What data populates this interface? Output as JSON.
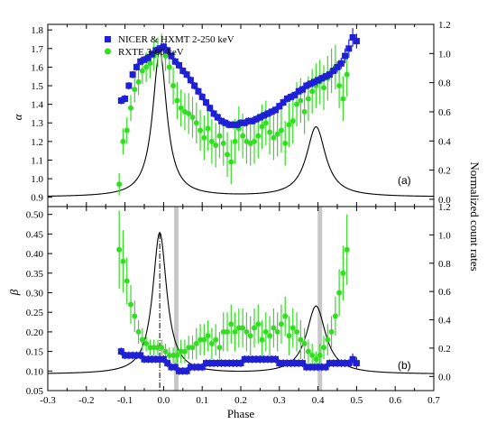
{
  "chart_data": [
    {
      "type": "scatter",
      "panel_label": "(a)",
      "xlabel": "",
      "ylabel": "α",
      "ylabel_right": "Normalized count rates",
      "xlim": [
        -0.3,
        0.7
      ],
      "ylim": [
        0.85,
        1.83
      ],
      "ylim_right": [
        -0.05,
        1.2
      ],
      "x_ticks": [
        "-0.3",
        "-0.2",
        "-0.1",
        "0.0",
        "0.1",
        "0.2",
        "0.3",
        "0.4",
        "0.5",
        "0.6",
        "0.7"
      ],
      "y_ticks": [
        "0.9",
        "1.0",
        "1.1",
        "1.2",
        "1.3",
        "1.4",
        "1.5",
        "1.6",
        "1.7",
        "1.8"
      ],
      "y_ticks_right": [
        "0.0",
        "0.2",
        "0.4",
        "0.6",
        "0.8",
        "1.0",
        "1.2"
      ],
      "legend": [
        {
          "label": "NICER & HXMT 2-250 keV",
          "color": "#1f1fd6",
          "marker": "square"
        },
        {
          "label": "RXTE 3-60 keV",
          "color": "#33dd22",
          "marker": "circle"
        }
      ],
      "series": [
        {
          "name": "NICER & HXMT 2-250 keV",
          "color": "#1f1fd6",
          "x": [
            -0.11,
            -0.1,
            -0.09,
            -0.08,
            -0.07,
            -0.06,
            -0.05,
            -0.04,
            -0.03,
            -0.02,
            -0.01,
            0.0,
            0.01,
            0.02,
            0.03,
            0.04,
            0.05,
            0.06,
            0.07,
            0.08,
            0.09,
            0.1,
            0.11,
            0.12,
            0.13,
            0.14,
            0.15,
            0.16,
            0.17,
            0.18,
            0.19,
            0.2,
            0.21,
            0.22,
            0.23,
            0.24,
            0.25,
            0.26,
            0.27,
            0.28,
            0.29,
            0.3,
            0.31,
            0.32,
            0.33,
            0.34,
            0.35,
            0.36,
            0.37,
            0.38,
            0.39,
            0.4,
            0.41,
            0.42,
            0.43,
            0.44,
            0.45,
            0.46,
            0.47,
            0.48,
            0.49,
            0.5
          ],
          "y": [
            1.42,
            1.43,
            1.5,
            1.56,
            1.6,
            1.63,
            1.64,
            1.65,
            1.67,
            1.69,
            1.7,
            1.71,
            1.69,
            1.66,
            1.63,
            1.61,
            1.58,
            1.56,
            1.53,
            1.5,
            1.47,
            1.44,
            1.41,
            1.38,
            1.35,
            1.33,
            1.31,
            1.3,
            1.29,
            1.29,
            1.29,
            1.3,
            1.3,
            1.31,
            1.31,
            1.32,
            1.33,
            1.34,
            1.35,
            1.36,
            1.37,
            1.39,
            1.41,
            1.43,
            1.44,
            1.45,
            1.47,
            1.48,
            1.5,
            1.51,
            1.52,
            1.53,
            1.54,
            1.55,
            1.56,
            1.58,
            1.6,
            1.62,
            1.66,
            1.7,
            1.76,
            1.74
          ],
          "yerr": [
            0.02,
            0.02,
            0.02,
            0.02,
            0.02,
            0.02,
            0.02,
            0.02,
            0.02,
            0.02,
            0.02,
            0.02,
            0.02,
            0.02,
            0.02,
            0.02,
            0.02,
            0.02,
            0.02,
            0.02,
            0.02,
            0.02,
            0.02,
            0.02,
            0.02,
            0.02,
            0.02,
            0.02,
            0.02,
            0.02,
            0.02,
            0.02,
            0.02,
            0.02,
            0.02,
            0.02,
            0.02,
            0.02,
            0.02,
            0.02,
            0.02,
            0.02,
            0.02,
            0.02,
            0.02,
            0.02,
            0.02,
            0.02,
            0.02,
            0.02,
            0.02,
            0.02,
            0.02,
            0.02,
            0.02,
            0.02,
            0.03,
            0.03,
            0.04,
            0.05,
            0.05,
            0.04
          ]
        },
        {
          "name": "RXTE 3-60 keV",
          "color": "#33dd22",
          "x": [
            -0.115,
            -0.105,
            -0.095,
            -0.085,
            -0.075,
            -0.065,
            -0.055,
            -0.045,
            -0.035,
            -0.025,
            -0.015,
            -0.005,
            0.005,
            0.015,
            0.025,
            0.035,
            0.045,
            0.055,
            0.065,
            0.075,
            0.085,
            0.095,
            0.105,
            0.115,
            0.125,
            0.135,
            0.145,
            0.155,
            0.165,
            0.175,
            0.185,
            0.195,
            0.205,
            0.215,
            0.225,
            0.235,
            0.245,
            0.255,
            0.265,
            0.275,
            0.285,
            0.295,
            0.305,
            0.315,
            0.325,
            0.335,
            0.345,
            0.355,
            0.365,
            0.375,
            0.385,
            0.395,
            0.405,
            0.415,
            0.425,
            0.435,
            0.445,
            0.455,
            0.465,
            0.475
          ],
          "y": [
            0.97,
            1.2,
            1.26,
            1.38,
            1.48,
            1.52,
            1.58,
            1.6,
            1.62,
            1.66,
            1.68,
            1.7,
            1.66,
            1.6,
            1.5,
            1.42,
            1.38,
            1.36,
            1.35,
            1.33,
            1.3,
            1.26,
            1.22,
            1.27,
            1.2,
            1.18,
            1.23,
            1.19,
            1.13,
            1.09,
            1.2,
            1.27,
            1.23,
            1.2,
            1.19,
            1.2,
            1.23,
            1.28,
            1.3,
            1.25,
            1.22,
            1.24,
            1.26,
            1.19,
            1.29,
            1.31,
            1.4,
            1.42,
            1.36,
            1.43,
            1.47,
            1.5,
            1.52,
            1.49,
            1.54,
            1.58,
            1.6,
            1.5,
            1.43,
            1.56
          ],
          "yerr": [
            0.06,
            0.07,
            0.07,
            0.07,
            0.07,
            0.07,
            0.07,
            0.08,
            0.08,
            0.08,
            0.08,
            0.08,
            0.08,
            0.09,
            0.1,
            0.1,
            0.1,
            0.1,
            0.11,
            0.11,
            0.11,
            0.11,
            0.12,
            0.12,
            0.12,
            0.12,
            0.12,
            0.12,
            0.12,
            0.12,
            0.12,
            0.12,
            0.12,
            0.12,
            0.12,
            0.12,
            0.12,
            0.12,
            0.12,
            0.12,
            0.12,
            0.12,
            0.12,
            0.12,
            0.12,
            0.12,
            0.12,
            0.12,
            0.12,
            0.12,
            0.12,
            0.12,
            0.12,
            0.12,
            0.12,
            0.12,
            0.12,
            0.12,
            0.12,
            0.12
          ]
        }
      ]
    },
    {
      "type": "scatter",
      "panel_label": "(b)",
      "xlabel": "Phase",
      "ylabel": "β",
      "xlim": [
        -0.3,
        0.7
      ],
      "ylim": [
        0.05,
        0.52
      ],
      "ylim_right": [
        -0.1,
        1.2
      ],
      "x_ticks": [
        "-0.3",
        "-0.2",
        "-0.1",
        "0.0",
        "0.1",
        "0.2",
        "0.3",
        "0.4",
        "0.5",
        "0.6",
        "0.7"
      ],
      "y_ticks": [
        "0.05",
        "0.10",
        "0.15",
        "0.20",
        "0.25",
        "0.30",
        "0.35",
        "0.40",
        "0.45",
        "0.50"
      ],
      "y_ticks_right": [
        "0.0",
        "0.2",
        "0.4",
        "0.6",
        "0.8",
        "1.0",
        "1.2"
      ],
      "vline_x": -0.01,
      "shaded_x": [
        0.033,
        0.405
      ],
      "series": [
        {
          "name": "NICER & HXMT 2-250 keV",
          "color": "#1f1fd6",
          "x": [
            -0.11,
            -0.1,
            -0.09,
            -0.08,
            -0.07,
            -0.06,
            -0.05,
            -0.04,
            -0.03,
            -0.02,
            -0.01,
            0.0,
            0.01,
            0.02,
            0.03,
            0.04,
            0.05,
            0.06,
            0.07,
            0.08,
            0.09,
            0.1,
            0.11,
            0.12,
            0.13,
            0.14,
            0.15,
            0.16,
            0.17,
            0.18,
            0.19,
            0.2,
            0.21,
            0.22,
            0.23,
            0.24,
            0.25,
            0.26,
            0.27,
            0.28,
            0.29,
            0.3,
            0.31,
            0.32,
            0.33,
            0.34,
            0.35,
            0.36,
            0.37,
            0.38,
            0.39,
            0.4,
            0.41,
            0.42,
            0.43,
            0.44,
            0.45,
            0.46,
            0.47,
            0.48,
            0.49,
            0.5
          ],
          "y": [
            0.15,
            0.14,
            0.14,
            0.14,
            0.14,
            0.14,
            0.13,
            0.13,
            0.13,
            0.13,
            0.13,
            0.13,
            0.12,
            0.11,
            0.11,
            0.1,
            0.1,
            0.1,
            0.11,
            0.11,
            0.11,
            0.11,
            0.12,
            0.12,
            0.12,
            0.12,
            0.12,
            0.12,
            0.12,
            0.12,
            0.12,
            0.12,
            0.13,
            0.13,
            0.13,
            0.13,
            0.13,
            0.13,
            0.13,
            0.13,
            0.13,
            0.12,
            0.12,
            0.12,
            0.12,
            0.12,
            0.12,
            0.12,
            0.11,
            0.11,
            0.11,
            0.11,
            0.11,
            0.11,
            0.12,
            0.12,
            0.12,
            0.12,
            0.12,
            0.12,
            0.13,
            0.12
          ],
          "yerr": [
            0.01,
            0.01,
            0.01,
            0.01,
            0.01,
            0.01,
            0.01,
            0.01,
            0.01,
            0.01,
            0.01,
            0.01,
            0.01,
            0.01,
            0.01,
            0.01,
            0.01,
            0.01,
            0.01,
            0.01,
            0.01,
            0.01,
            0.01,
            0.01,
            0.01,
            0.01,
            0.01,
            0.01,
            0.01,
            0.01,
            0.01,
            0.01,
            0.01,
            0.01,
            0.01,
            0.01,
            0.01,
            0.01,
            0.01,
            0.01,
            0.01,
            0.01,
            0.01,
            0.01,
            0.01,
            0.01,
            0.01,
            0.01,
            0.01,
            0.01,
            0.01,
            0.01,
            0.01,
            0.01,
            0.01,
            0.01,
            0.01,
            0.01,
            0.01,
            0.01,
            0.015,
            0.015
          ]
        },
        {
          "name": "RXTE 3-60 keV",
          "color": "#33dd22",
          "x": [
            -0.115,
            -0.105,
            -0.095,
            -0.085,
            -0.075,
            -0.065,
            -0.055,
            -0.045,
            -0.035,
            -0.025,
            -0.015,
            -0.005,
            0.005,
            0.015,
            0.025,
            0.035,
            0.045,
            0.055,
            0.065,
            0.075,
            0.085,
            0.095,
            0.105,
            0.115,
            0.125,
            0.135,
            0.145,
            0.155,
            0.165,
            0.175,
            0.185,
            0.195,
            0.205,
            0.215,
            0.225,
            0.235,
            0.245,
            0.255,
            0.265,
            0.275,
            0.285,
            0.295,
            0.305,
            0.315,
            0.325,
            0.335,
            0.345,
            0.355,
            0.365,
            0.375,
            0.385,
            0.395,
            0.405,
            0.415,
            0.425,
            0.435,
            0.445,
            0.455,
            0.465,
            0.475
          ],
          "y": [
            0.41,
            0.38,
            0.33,
            0.27,
            0.24,
            0.2,
            0.18,
            0.17,
            0.16,
            0.16,
            0.16,
            0.16,
            0.15,
            0.14,
            0.14,
            0.14,
            0.15,
            0.15,
            0.16,
            0.16,
            0.17,
            0.18,
            0.18,
            0.19,
            0.17,
            0.18,
            0.16,
            0.2,
            0.2,
            0.22,
            0.2,
            0.21,
            0.21,
            0.2,
            0.19,
            0.21,
            0.22,
            0.18,
            0.2,
            0.19,
            0.21,
            0.2,
            0.22,
            0.24,
            0.19,
            0.21,
            0.2,
            0.18,
            0.17,
            0.15,
            0.14,
            0.13,
            0.14,
            0.16,
            0.18,
            0.2,
            0.24,
            0.3,
            0.35,
            0.41
          ],
          "yerr": [
            0.1,
            0.08,
            0.06,
            0.05,
            0.04,
            0.03,
            0.03,
            0.02,
            0.02,
            0.02,
            0.02,
            0.02,
            0.02,
            0.02,
            0.02,
            0.02,
            0.03,
            0.03,
            0.03,
            0.03,
            0.04,
            0.04,
            0.04,
            0.04,
            0.04,
            0.04,
            0.04,
            0.05,
            0.05,
            0.05,
            0.05,
            0.05,
            0.05,
            0.05,
            0.05,
            0.05,
            0.05,
            0.05,
            0.05,
            0.05,
            0.05,
            0.05,
            0.05,
            0.05,
            0.05,
            0.05,
            0.05,
            0.05,
            0.04,
            0.03,
            0.03,
            0.02,
            0.03,
            0.03,
            0.04,
            0.04,
            0.05,
            0.06,
            0.07,
            0.09
          ]
        }
      ]
    }
  ]
}
